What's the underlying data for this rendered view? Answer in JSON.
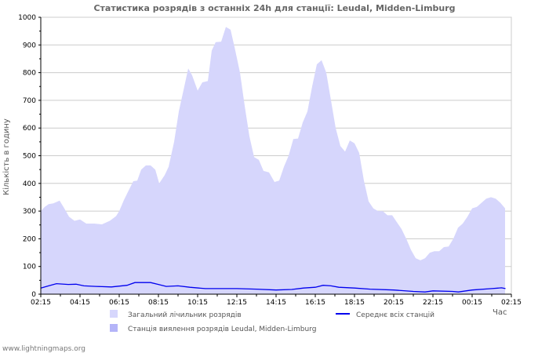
{
  "chart_data": {
    "type": "area",
    "title": "Статистика розрядів з останніх 24h для станції: Leudal, Midden-Limburg",
    "xlabel": "Час",
    "ylabel": "Кількість в годину",
    "ylim": [
      0,
      1000
    ],
    "yticks": [
      "0",
      "100",
      "200",
      "300",
      "400",
      "500",
      "600",
      "700",
      "800",
      "900",
      "1000"
    ],
    "xlim_hours_from_start": [
      0,
      24
    ],
    "xticks": [
      "02:15",
      "04:15",
      "06:15",
      "08:15",
      "10:15",
      "12:15",
      "14:15",
      "16:15",
      "18:15",
      "20:15",
      "22:15",
      "00:15",
      "02:15"
    ],
    "grid": true,
    "legend_position": "bottom",
    "legend": {
      "total": "Загальний лічильник розрядів",
      "station": "Станція виялення розрядів Leudal, Midden-Limburg",
      "average": "Середнє всіх станцій"
    },
    "colors": {
      "total": "#d6d6fc",
      "station": "#b4b4f8",
      "average": "#0000ee"
    },
    "series": [
      {
        "name": "Загальний лічильник розрядів",
        "kind": "area",
        "points": [
          [
            0,
            300
          ],
          [
            0.2,
            315
          ],
          [
            0.4,
            325
          ],
          [
            0.64,
            328
          ],
          [
            0.96,
            338
          ],
          [
            1.2,
            310
          ],
          [
            1.44,
            280
          ],
          [
            1.72,
            265
          ],
          [
            2,
            270
          ],
          [
            2.32,
            255
          ],
          [
            2.72,
            255
          ],
          [
            3.12,
            252
          ],
          [
            3.52,
            265
          ],
          [
            3.84,
            282
          ],
          [
            4,
            300
          ],
          [
            4.24,
            340
          ],
          [
            4.52,
            380
          ],
          [
            4.72,
            408
          ],
          [
            4.92,
            410
          ],
          [
            5.12,
            450
          ],
          [
            5.36,
            465
          ],
          [
            5.6,
            465
          ],
          [
            5.84,
            450
          ],
          [
            6.04,
            400
          ],
          [
            6.32,
            430
          ],
          [
            6.52,
            460
          ],
          [
            6.8,
            550
          ],
          [
            7.04,
            660
          ],
          [
            7.32,
            750
          ],
          [
            7.52,
            815
          ],
          [
            7.72,
            790
          ],
          [
            8,
            735
          ],
          [
            8.24,
            765
          ],
          [
            8.52,
            770
          ],
          [
            8.72,
            880
          ],
          [
            8.92,
            910
          ],
          [
            9.2,
            912
          ],
          [
            9.44,
            965
          ],
          [
            9.68,
            955
          ],
          [
            9.92,
            880
          ],
          [
            10.16,
            800
          ],
          [
            10.4,
            680
          ],
          [
            10.64,
            570
          ],
          [
            10.88,
            495
          ],
          [
            11.12,
            485
          ],
          [
            11.36,
            445
          ],
          [
            11.64,
            440
          ],
          [
            11.92,
            405
          ],
          [
            12.16,
            410
          ],
          [
            12.4,
            460
          ],
          [
            12.64,
            500
          ],
          [
            12.88,
            560
          ],
          [
            13.12,
            562
          ],
          [
            13.36,
            620
          ],
          [
            13.6,
            660
          ],
          [
            13.84,
            750
          ],
          [
            14.08,
            830
          ],
          [
            14.32,
            845
          ],
          [
            14.56,
            800
          ],
          [
            14.8,
            700
          ],
          [
            15.04,
            600
          ],
          [
            15.28,
            535
          ],
          [
            15.52,
            515
          ],
          [
            15.76,
            555
          ],
          [
            16,
            545
          ],
          [
            16.24,
            510
          ],
          [
            16.48,
            410
          ],
          [
            16.72,
            335
          ],
          [
            16.96,
            310
          ],
          [
            17.2,
            300
          ],
          [
            17.44,
            300
          ],
          [
            17.68,
            285
          ],
          [
            17.92,
            285
          ],
          [
            18.16,
            260
          ],
          [
            18.4,
            235
          ],
          [
            18.64,
            200
          ],
          [
            18.88,
            160
          ],
          [
            19.12,
            130
          ],
          [
            19.36,
            122
          ],
          [
            19.6,
            130
          ],
          [
            19.84,
            150
          ],
          [
            20.08,
            155
          ],
          [
            20.32,
            155
          ],
          [
            20.56,
            170
          ],
          [
            20.8,
            172
          ],
          [
            21.04,
            200
          ],
          [
            21.28,
            240
          ],
          [
            21.52,
            255
          ],
          [
            21.76,
            280
          ],
          [
            22,
            310
          ],
          [
            22.24,
            315
          ],
          [
            22.48,
            330
          ],
          [
            22.72,
            345
          ],
          [
            22.96,
            350
          ],
          [
            23.2,
            345
          ],
          [
            23.44,
            330
          ],
          [
            23.68,
            310
          ]
        ]
      },
      {
        "name": "Середнє всіх станцій",
        "kind": "line",
        "points": [
          [
            0,
            22
          ],
          [
            0.4,
            30
          ],
          [
            0.8,
            38
          ],
          [
            1.4,
            35
          ],
          [
            1.8,
            36
          ],
          [
            2.2,
            30
          ],
          [
            2.8,
            28
          ],
          [
            3.6,
            26
          ],
          [
            4.4,
            32
          ],
          [
            4.8,
            42
          ],
          [
            5.6,
            42
          ],
          [
            6,
            35
          ],
          [
            6.4,
            28
          ],
          [
            7,
            30
          ],
          [
            7.6,
            25
          ],
          [
            8.4,
            20
          ],
          [
            10,
            20
          ],
          [
            11,
            18
          ],
          [
            12,
            15
          ],
          [
            12.8,
            17
          ],
          [
            13.4,
            22
          ],
          [
            14,
            25
          ],
          [
            14.4,
            32
          ],
          [
            14.8,
            30
          ],
          [
            15.2,
            25
          ],
          [
            16,
            22
          ],
          [
            16.8,
            18
          ],
          [
            18,
            15
          ],
          [
            19,
            10
          ],
          [
            19.6,
            8
          ],
          [
            20,
            12
          ],
          [
            21,
            10
          ],
          [
            21.3,
            8
          ],
          [
            22,
            15
          ],
          [
            23,
            20
          ],
          [
            23.5,
            23
          ],
          [
            23.7,
            20
          ]
        ]
      }
    ]
  },
  "footer": "www.lightningmaps.org"
}
